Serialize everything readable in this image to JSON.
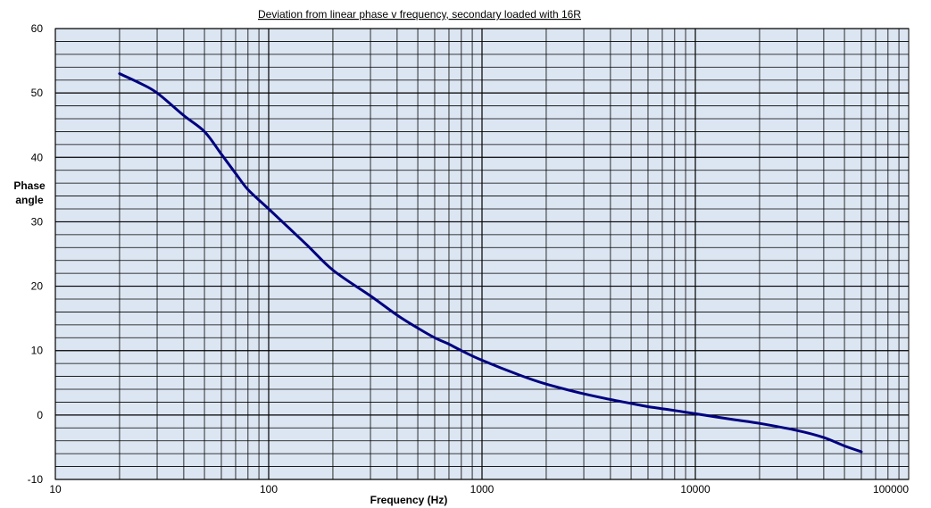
{
  "chart_data": {
    "type": "line",
    "title": "Deviation from linear phase v frequency, secondary loaded with 16R",
    "xlabel": "Frequency (Hz)",
    "ylabel_line1": "Phase",
    "ylabel_line2": "angle",
    "x_scale": "log",
    "xlim": [
      10,
      100000
    ],
    "ylim": [
      -10,
      60
    ],
    "x_ticks": [
      "10",
      "100",
      "1000",
      "10000",
      "100000"
    ],
    "y_ticks": [
      "60",
      "50",
      "40",
      "30",
      "20",
      "10",
      "0",
      "-10"
    ],
    "y_minor_step": 2,
    "grid": true,
    "plot_background": "#dce6f2",
    "grid_color": "#000000",
    "line_color": "#000080",
    "series": [
      {
        "x": [
          20,
          25,
          30,
          40,
          50,
          60,
          70,
          80,
          100,
          150,
          200,
          300,
          400,
          500,
          600,
          700,
          800,
          1000,
          1500,
          2000,
          3000,
          4000,
          5000,
          6000,
          8000,
          10000,
          15000,
          20000,
          30000,
          40000,
          50000,
          60000
        ],
        "y": [
          53,
          51.5,
          50,
          46.5,
          44,
          40.5,
          37.5,
          35,
          32,
          26.5,
          22.5,
          18.5,
          15.5,
          13.5,
          12,
          11,
          10,
          8.5,
          6.2,
          4.8,
          3.3,
          2.4,
          1.8,
          1.3,
          0.7,
          0.2,
          -0.7,
          -1.3,
          -2.4,
          -3.5,
          -4.8,
          -5.7
        ]
      }
    ]
  }
}
